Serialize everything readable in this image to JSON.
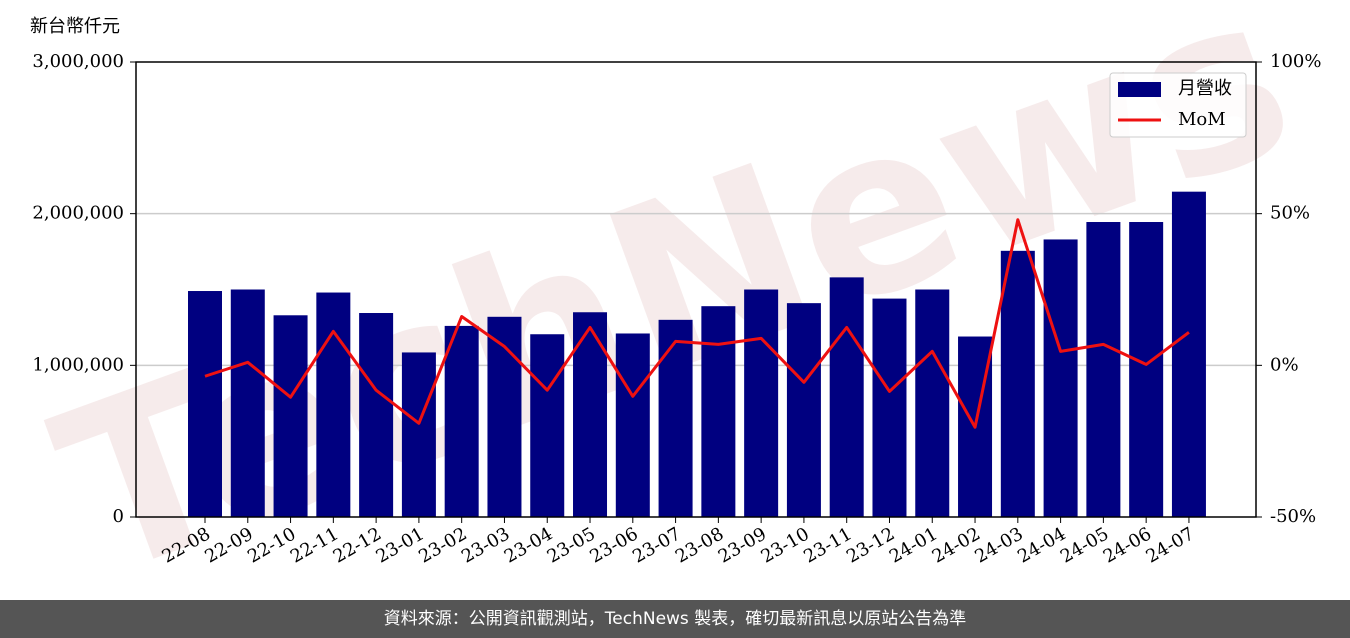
{
  "chart_data": {
    "type": "bar_line",
    "y_label": "新台幣仟元",
    "watermark": "TechNews",
    "categories": [
      "22-08",
      "22-09",
      "22-10",
      "22-11",
      "22-12",
      "23-01",
      "23-02",
      "23-03",
      "23-04",
      "23-05",
      "23-06",
      "23-07",
      "23-08",
      "23-09",
      "23-10",
      "23-11",
      "23-12",
      "24-01",
      "24-02",
      "24-03",
      "24-04",
      "24-05",
      "24-06",
      "24-07"
    ],
    "series": [
      {
        "name": "月營收",
        "kind": "bar",
        "color": "#000080",
        "values": [
          1490000,
          1500000,
          1330000,
          1480000,
          1345000,
          1085000,
          1260000,
          1320000,
          1205000,
          1350000,
          1210000,
          1300000,
          1390000,
          1500000,
          1410000,
          1580000,
          1440000,
          1500000,
          1190000,
          1755000,
          1830000,
          1945000,
          1945000,
          2145000
        ]
      },
      {
        "name": "MoM",
        "kind": "line",
        "axis": "y2",
        "color": "#ee1111",
        "values": [
          -3.6,
          1,
          -10.5,
          11.2,
          -8.2,
          -19.1,
          16.1,
          6.2,
          -8.2,
          12.5,
          -10.2,
          7.9,
          6.9,
          8.9,
          -5.6,
          12.5,
          -8.6,
          4.6,
          -20.4,
          48,
          4.6,
          6.9,
          0.3,
          10.9
        ]
      }
    ],
    "ylim": [
      0,
      3000000
    ],
    "yticks": [
      0,
      {
        "value": 1000000,
        "label": "1,000,000"
      },
      {
        "value": 2000000,
        "label": "2,000,000"
      },
      {
        "value": 3000000,
        "label": "3,000,000"
      }
    ],
    "y2lim": [
      -50,
      100
    ],
    "y2ticks": [
      {
        "value": -50,
        "label": "-50%"
      },
      {
        "value": 0,
        "label": "0%"
      },
      {
        "value": 50,
        "label": "50%"
      },
      {
        "value": 100,
        "label": "100%"
      }
    ],
    "grid": true,
    "legend": "upper right"
  },
  "footer": "資料來源：公開資訊觀測站，TechNews 製表，確切最新訊息以原站公告為準"
}
